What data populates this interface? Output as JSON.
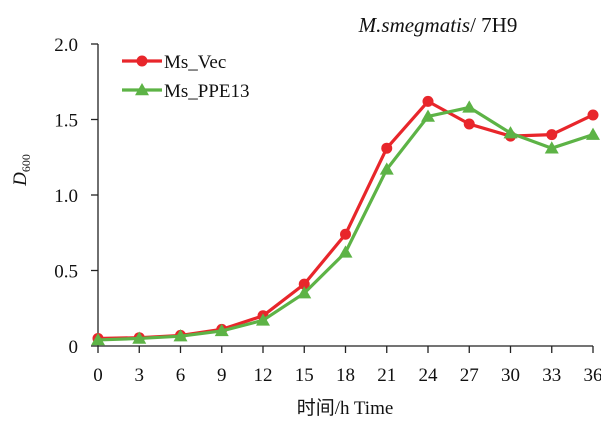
{
  "chart_data": {
    "type": "line",
    "title": {
      "italic": "M.smegmatis",
      "rest": "/ 7H9"
    },
    "xlabel": "时间/h Time",
    "ylabel": {
      "main": "D",
      "sub": "600"
    },
    "x": [
      0,
      3,
      6,
      9,
      12,
      15,
      18,
      21,
      24,
      27,
      30,
      33,
      36
    ],
    "xticks": [
      "0",
      "3",
      "6",
      "9",
      "12",
      "15",
      "18",
      "21",
      "24",
      "27",
      "30",
      "33",
      "36"
    ],
    "yticks": [
      "0",
      "0.5",
      "1.0",
      "1.5",
      "2.0"
    ],
    "ylim": [
      0,
      2.0
    ],
    "xlim": [
      0,
      36
    ],
    "legend_position": "top-left",
    "grid": false,
    "series": [
      {
        "name": "Ms_Vec",
        "color": "#e8262b",
        "marker": "circle",
        "values": [
          0.05,
          0.055,
          0.07,
          0.11,
          0.2,
          0.41,
          0.74,
          1.31,
          1.62,
          1.47,
          1.39,
          1.4,
          1.53
        ]
      },
      {
        "name": "Ms_PPE13",
        "color": "#5db346",
        "marker": "triangle",
        "values": [
          0.04,
          0.05,
          0.065,
          0.1,
          0.17,
          0.35,
          0.62,
          1.17,
          1.52,
          1.58,
          1.41,
          1.31,
          1.4
        ]
      }
    ]
  }
}
